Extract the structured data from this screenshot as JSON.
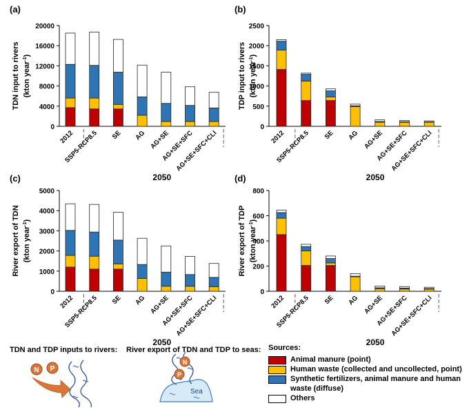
{
  "colors": {
    "animal_manure": "#c00000",
    "human_waste": "#ffc000",
    "diffuse": "#2e75b6",
    "others": "#ffffff"
  },
  "chart_data": [
    {
      "panel": "(a)",
      "type": "bar",
      "stacked": true,
      "ylabel": "TDN input to rivers",
      "yunit_line": "(kton year",
      "yunit_sup": "-1",
      "yunit_end": ")",
      "ylim": [
        0,
        20000
      ],
      "yticks": [
        0,
        4000,
        8000,
        12000,
        16000,
        20000
      ],
      "categories": [
        "2012",
        "SSP5-RCP8.5",
        "SE",
        "AG",
        "AG+SE",
        "AG+SE+SFC",
        "AG+SE+SFC+CLI"
      ],
      "xgroup_label": "2050",
      "series": [
        {
          "name": "Animal manure (point)",
          "values": [
            3700,
            3450,
            3450,
            0,
            0,
            0,
            0
          ]
        },
        {
          "name": "Human waste (collected and uncollected, point)",
          "values": [
            1900,
            2150,
            900,
            2200,
            950,
            950,
            950
          ]
        },
        {
          "name": "Synthetic fertilizers, animal manure and human waste (diffuse)",
          "values": [
            6700,
            6500,
            6400,
            3650,
            3600,
            3200,
            2700
          ]
        },
        {
          "name": "Others",
          "values": [
            6200,
            6600,
            6500,
            6300,
            6200,
            3700,
            3100
          ]
        }
      ],
      "totals": [
        18500,
        18700,
        17250,
        12150,
        10750,
        7850,
        6750
      ]
    },
    {
      "panel": "(b)",
      "type": "bar",
      "stacked": true,
      "ylabel": "TDP input to rivers",
      "yunit_line": "(kton year",
      "yunit_sup": "-1",
      "yunit_end": ")",
      "ylim": [
        0,
        2500
      ],
      "yticks": [
        0,
        500,
        1000,
        1500,
        2000,
        2500
      ],
      "categories": [
        "2012",
        "SSP5-RCP8.5",
        "SE",
        "AG",
        "AG+SE",
        "AG+SE+SFC",
        "AG+SE+SFC+CLI"
      ],
      "xgroup_label": "2050",
      "series": [
        {
          "name": "Animal manure (point)",
          "values": [
            1410,
            640,
            640,
            0,
            0,
            0,
            0
          ]
        },
        {
          "name": "Human waste (collected and uncollected, point)",
          "values": [
            480,
            480,
            90,
            490,
            100,
            100,
            100
          ]
        },
        {
          "name": "Synthetic fertilizers, animal manure and human waste (diffuse)",
          "values": [
            220,
            170,
            150,
            20,
            20,
            15,
            10
          ]
        },
        {
          "name": "Others",
          "values": [
            40,
            30,
            50,
            40,
            40,
            30,
            25
          ]
        }
      ],
      "totals": [
        2150,
        1320,
        930,
        550,
        160,
        145,
        135
      ]
    },
    {
      "panel": "(c)",
      "type": "bar",
      "stacked": true,
      "ylabel": "River export of TDN",
      "yunit_line": "(kton year",
      "yunit_sup": "-1",
      "yunit_end": ")",
      "ylim": [
        0,
        5000
      ],
      "yticks": [
        0,
        1000,
        2000,
        3000,
        4000,
        5000
      ],
      "categories": [
        "2012",
        "SSP5-RCP8.5",
        "SE",
        "AG",
        "AG+SE",
        "AG+SE+SFC",
        "AG+SE+SFC+CLI"
      ],
      "xgroup_label": "2050",
      "series": [
        {
          "name": "Animal manure (point)",
          "values": [
            1200,
            1100,
            1100,
            0,
            0,
            0,
            0
          ]
        },
        {
          "name": "Human waste (collected and uncollected, point)",
          "values": [
            580,
            640,
            260,
            640,
            250,
            250,
            230
          ]
        },
        {
          "name": "Synthetic fertilizers, animal manure and human waste (diffuse)",
          "values": [
            1240,
            1200,
            1180,
            690,
            700,
            580,
            460
          ]
        },
        {
          "name": "Others",
          "values": [
            1320,
            1370,
            1380,
            1300,
            1300,
            900,
            690
          ]
        }
      ],
      "totals": [
        4340,
        4310,
        3920,
        2630,
        2250,
        1730,
        1380
      ]
    },
    {
      "panel": "(d)",
      "type": "bar",
      "stacked": true,
      "ylabel": "River export of TDP",
      "yunit_line": "(kton year",
      "yunit_sup": "-1",
      "yunit_end": ")",
      "ylim": [
        0,
        800
      ],
      "yticks": [
        0,
        200,
        400,
        600,
        800
      ],
      "categories": [
        "2012",
        "SSP5-RCP8.5",
        "SE",
        "AG",
        "AG+SE",
        "AG+SE+SFC",
        "AG+SE+SFC+CLI"
      ],
      "xgroup_label": "2050",
      "series": [
        {
          "name": "Animal manure (point)",
          "values": [
            450,
            205,
            205,
            0,
            0,
            0,
            0
          ]
        },
        {
          "name": "Human waste (collected and uncollected, point)",
          "values": [
            130,
            115,
            20,
            115,
            20,
            18,
            17
          ]
        },
        {
          "name": "Synthetic fertilizers, animal manure and human waste (diffuse)",
          "values": [
            45,
            35,
            35,
            5,
            8,
            7,
            5
          ]
        },
        {
          "name": "Others",
          "values": [
            20,
            18,
            20,
            20,
            14,
            12,
            10
          ]
        }
      ],
      "totals": [
        645,
        373,
        280,
        140,
        42,
        37,
        32
      ]
    }
  ],
  "illustrations": {
    "inputs_caption": "TDN and TDP inputs to rivers:",
    "export_caption": "River export of TDN and TDP to seas:",
    "n_label": "N",
    "p_label": "P",
    "sea_label": "Sea"
  },
  "legend": {
    "title": "Sources:",
    "items": [
      {
        "label": "Animal manure (point)",
        "key": "animal_manure"
      },
      {
        "label": "Human waste (collected and uncollected, point)",
        "key": "human_waste"
      },
      {
        "label": "Synthetic fertilizers, animal manure and human waste (diffuse)",
        "key": "diffuse"
      },
      {
        "label": "Others",
        "key": "others"
      }
    ]
  }
}
